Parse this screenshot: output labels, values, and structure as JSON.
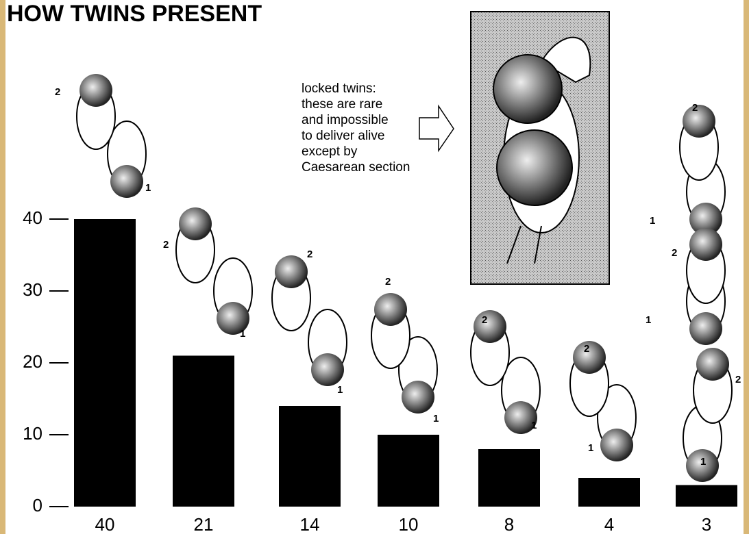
{
  "chart_data": {
    "type": "bar",
    "title": "HOW TWINS PRESENT",
    "annotation": [
      "locked twins:",
      "these are rare",
      "and impossible",
      "to deliver alive",
      "except by",
      "Caesarean section"
    ],
    "twin_labels": [
      "1",
      "2"
    ],
    "categories": [
      null,
      null,
      null,
      null,
      null,
      null,
      null
    ],
    "values": [
      40,
      21,
      14,
      10,
      8,
      4,
      3
    ],
    "color": "#000000",
    "ylim": [
      0,
      40
    ],
    "yticks": [
      0,
      10,
      20,
      30,
      40
    ]
  }
}
